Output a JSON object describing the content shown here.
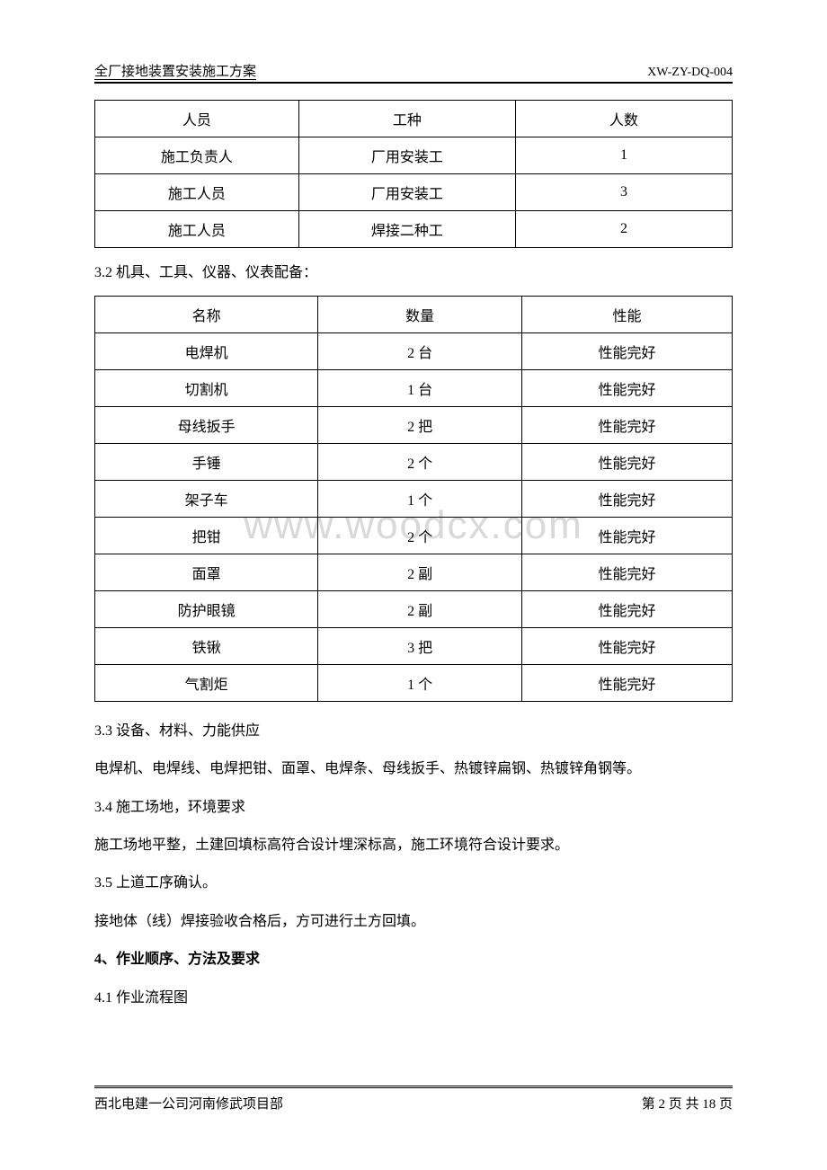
{
  "header": {
    "title": "全厂接地装置安装施工方案",
    "code": "XW-ZY-DQ-004"
  },
  "watermark": "www.woodcx.com",
  "table1": {
    "headers": [
      "人员",
      "工种",
      "人数"
    ],
    "rows": [
      [
        "施工负责人",
        "厂用安装工",
        "1"
      ],
      [
        "施工人员",
        "厂用安装工",
        "3"
      ],
      [
        "施工人员",
        "焊接二种工",
        "2"
      ]
    ]
  },
  "section32": "3.2 机具、工具、仪器、仪表配备：",
  "table2": {
    "headers": [
      "名称",
      "数量",
      "性能"
    ],
    "rows": [
      [
        "电焊机",
        "2 台",
        "性能完好"
      ],
      [
        "切割机",
        "1 台",
        "性能完好"
      ],
      [
        "母线扳手",
        "2 把",
        "性能完好"
      ],
      [
        "手锤",
        "2 个",
        "性能完好"
      ],
      [
        "架子车",
        "1 个",
        "性能完好"
      ],
      [
        "把钳",
        "2 个",
        "性能完好"
      ],
      [
        "面罩",
        "2 副",
        "性能完好"
      ],
      [
        "防护眼镜",
        "2 副",
        "性能完好"
      ],
      [
        "铁锹",
        "3 把",
        "性能完好"
      ],
      [
        "气割炬",
        "1 个",
        "性能完好"
      ]
    ]
  },
  "paragraphs": {
    "p33_title": "3.3 设备、材料、力能供应",
    "p33_body": "电焊机、电焊线、电焊把钳、面罩、电焊条、母线扳手、热镀锌扁钢、热镀锌角钢等。",
    "p34_title": "3.4 施工场地，环境要求",
    "p34_body": "施工场地平整，土建回填标高符合设计埋深标高，施工环境符合设计要求。",
    "p35_title": "3.5 上道工序确认。",
    "p35_body": "接地体（线）焊接验收合格后，方可进行土方回填。",
    "p4_title": "4、作业顺序、方法及要求",
    "p41_title": "4.1 作业流程图"
  },
  "footer": {
    "left": "西北电建一公司河南修武项目部",
    "right": "第 2 页 共 18 页"
  }
}
